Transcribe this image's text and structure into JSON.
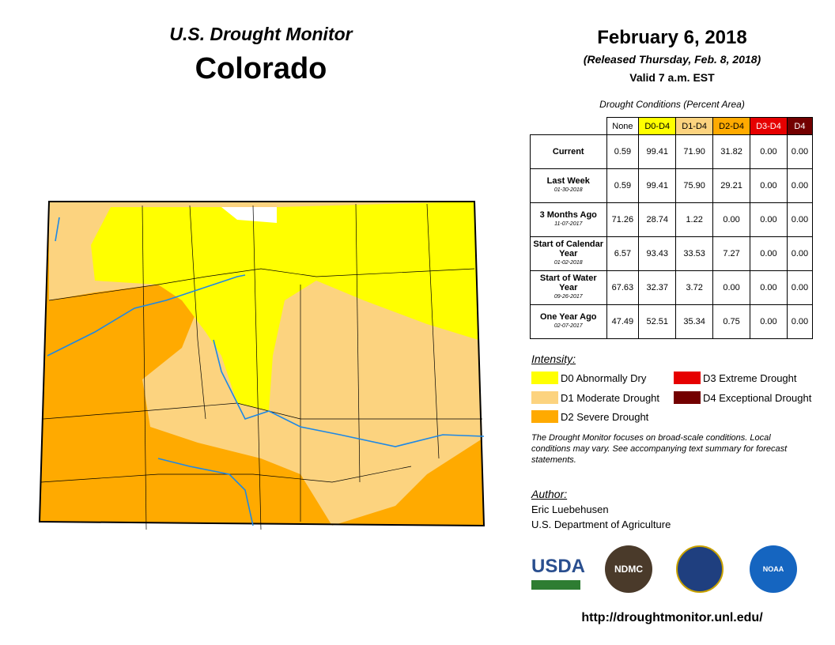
{
  "header": {
    "title": "U.S. Drought Monitor",
    "state": "Colorado",
    "date": "February 6, 2018",
    "released": "(Released Thursday, Feb. 8, 2018)",
    "valid": "Valid 7 a.m. EST"
  },
  "table": {
    "caption": "Drought Conditions (Percent Area)",
    "columns": [
      {
        "label": "None",
        "color": "#ffffff"
      },
      {
        "label": "D0-D4",
        "color": "#ffff00"
      },
      {
        "label": "D1-D4",
        "color": "#fcd37f"
      },
      {
        "label": "D2-D4",
        "color": "#ffaa00"
      },
      {
        "label": "D3-D4",
        "color": "#e60000"
      },
      {
        "label": "D4",
        "color": "#730000"
      }
    ],
    "rows": [
      {
        "label": "Current",
        "values": [
          "0.59",
          "99.41",
          "71.90",
          "31.82",
          "0.00",
          "0.00"
        ]
      },
      {
        "label": "Last Week",
        "date": "01-30-2018",
        "values": [
          "0.59",
          "99.41",
          "75.90",
          "29.21",
          "0.00",
          "0.00"
        ]
      },
      {
        "label": "3 Months Ago",
        "date": "11-07-2017",
        "values": [
          "71.26",
          "28.74",
          "1.22",
          "0.00",
          "0.00",
          "0.00"
        ]
      },
      {
        "label": "Start of Calendar Year",
        "date": "01-02-2018",
        "values": [
          "6.57",
          "93.43",
          "33.53",
          "7.27",
          "0.00",
          "0.00"
        ]
      },
      {
        "label": "Start of Water Year",
        "date": "09-26-2017",
        "values": [
          "67.63",
          "32.37",
          "3.72",
          "0.00",
          "0.00",
          "0.00"
        ]
      },
      {
        "label": "One Year Ago",
        "date": "02-07-2017",
        "values": [
          "47.49",
          "52.51",
          "35.34",
          "0.75",
          "0.00",
          "0.00"
        ]
      }
    ]
  },
  "legend": {
    "title": "Intensity:",
    "items": [
      {
        "label": "D0 Abnormally Dry",
        "color": "#ffff00"
      },
      {
        "label": "D1 Moderate Drought",
        "color": "#fcd37f"
      },
      {
        "label": "D2 Severe Drought",
        "color": "#ffaa00"
      },
      {
        "label": "D3 Extreme Drought",
        "color": "#e60000"
      },
      {
        "label": "D4 Exceptional Drought",
        "color": "#730000"
      }
    ]
  },
  "note": "The Drought Monitor focuses on broad-scale conditions. Local conditions may vary. See accompanying text summary for forecast statements.",
  "author": {
    "title": "Author:",
    "name": "Eric Luebehusen",
    "organization": "U.S. Department of Agriculture"
  },
  "logos": [
    "USDA",
    "NDMC",
    "NOAA"
  ],
  "url": "http://droughtmonitor.unl.edu/"
}
